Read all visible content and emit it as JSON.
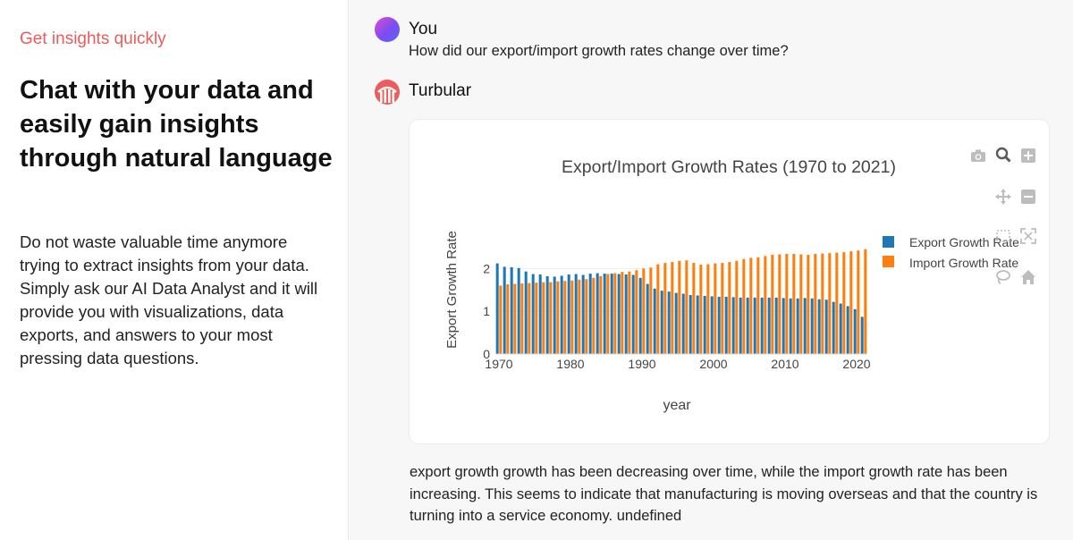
{
  "intro": {
    "eyebrow": "Get insights quickly",
    "headline": "Chat with your data and easily gain insights through natural language",
    "description": "Do not waste valuable time anymore trying to extract insights from your data. Simply ask our AI Data Analyst and it will provide you with visualizations, data exports, and answers to your most pressing data questions."
  },
  "chat": {
    "user_name": "You",
    "user_message": "How did our export/import growth rates change over time?",
    "bot_name": "Turbular",
    "bot_answer": "export growth growth has been decreasing over time, while the import growth rate has been increasing. This seems to indicate that manufacturing is moving overseas and that the country is turning into a service economy. undefined"
  },
  "modebar_icons": [
    "camera-icon",
    "zoom-icon",
    "zoom-in-icon",
    "pan-icon",
    "zoom-out-icon",
    "box-select-icon",
    "autoscale-icon",
    "lasso-icon",
    "home-icon"
  ],
  "colors": {
    "export": "#1f77b4",
    "import": "#ff7f0e",
    "accent": "#ef5a5a"
  },
  "chart_data": {
    "type": "bar",
    "title": "Export/Import Growth Rates (1970 to 2021)",
    "xlabel": "year",
    "ylabel": "Export Growth Rate",
    "xlim": [
      1969.5,
      2021.5
    ],
    "ylim": [
      0,
      2.55
    ],
    "xticks": [
      1970,
      1980,
      1990,
      2000,
      2010,
      2020
    ],
    "yticks": [
      0,
      1,
      2
    ],
    "legend": "top-right",
    "x": [
      1970,
      1971,
      1972,
      1973,
      1974,
      1975,
      1976,
      1977,
      1978,
      1979,
      1980,
      1981,
      1982,
      1983,
      1984,
      1985,
      1986,
      1987,
      1988,
      1989,
      1990,
      1991,
      1992,
      1993,
      1994,
      1995,
      1996,
      1997,
      1998,
      1999,
      2000,
      2001,
      2002,
      2003,
      2004,
      2005,
      2006,
      2007,
      2008,
      2009,
      2010,
      2011,
      2012,
      2013,
      2014,
      2015,
      2016,
      2017,
      2018,
      2019,
      2020,
      2021
    ],
    "series": [
      {
        "name": "Export Growth Rate",
        "values": [
          2.12,
          2.04,
          2.03,
          2.01,
          1.93,
          1.87,
          1.86,
          1.82,
          1.81,
          1.83,
          1.86,
          1.87,
          1.85,
          1.88,
          1.89,
          1.88,
          1.88,
          1.87,
          1.86,
          1.85,
          1.78,
          1.64,
          1.53,
          1.48,
          1.46,
          1.43,
          1.41,
          1.38,
          1.37,
          1.36,
          1.35,
          1.34,
          1.34,
          1.33,
          1.32,
          1.32,
          1.32,
          1.32,
          1.32,
          1.32,
          1.31,
          1.3,
          1.3,
          1.31,
          1.3,
          1.28,
          1.27,
          1.22,
          1.18,
          1.12,
          1.05,
          0.87
        ]
      },
      {
        "name": "Import Growth Rate",
        "values": [
          1.6,
          1.63,
          1.64,
          1.65,
          1.66,
          1.67,
          1.68,
          1.68,
          1.7,
          1.71,
          1.72,
          1.74,
          1.75,
          1.78,
          1.82,
          1.87,
          1.89,
          1.92,
          1.93,
          1.96,
          2.0,
          2.02,
          2.1,
          2.13,
          2.15,
          2.18,
          2.19,
          2.13,
          2.09,
          2.1,
          2.12,
          2.13,
          2.15,
          2.18,
          2.22,
          2.25,
          2.26,
          2.29,
          2.32,
          2.33,
          2.34,
          2.34,
          2.33,
          2.32,
          2.34,
          2.35,
          2.36,
          2.37,
          2.38,
          2.4,
          2.42,
          2.45
        ]
      }
    ]
  }
}
